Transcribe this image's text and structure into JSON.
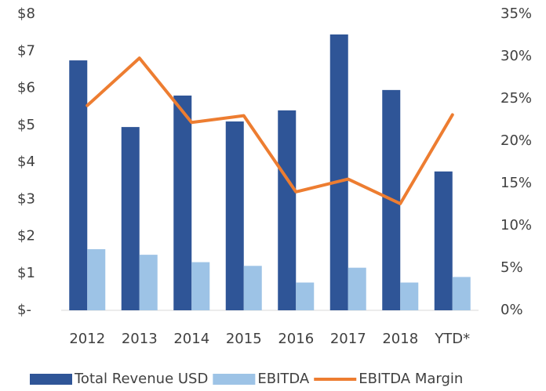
{
  "chart_data": {
    "type": "bar_line",
    "categories": [
      "2012",
      "2013",
      "2014",
      "2015",
      "2016",
      "2017",
      "2018",
      "YTD*"
    ],
    "series": [
      {
        "name": "Total Revenue USD",
        "type": "bar",
        "color": "#2f5597",
        "values": [
          6.75,
          4.95,
          5.8,
          5.1,
          5.4,
          7.45,
          5.95,
          3.75
        ]
      },
      {
        "name": "EBITDA",
        "type": "bar",
        "color": "#9dc3e6",
        "values": [
          1.65,
          1.5,
          1.3,
          1.2,
          0.75,
          1.15,
          0.75,
          0.9
        ]
      },
      {
        "name": "EBITDA Margin",
        "type": "line",
        "axis": "y2",
        "color": "#ed7d31",
        "values": [
          24.2,
          29.8,
          22.2,
          23.0,
          14.0,
          15.5,
          12.6,
          23.1
        ]
      }
    ],
    "ylim": [
      0,
      8
    ],
    "yticks": [
      {
        "value": 0,
        "label": "$-"
      },
      {
        "value": 1,
        "label": "$1"
      },
      {
        "value": 2,
        "label": "$2"
      },
      {
        "value": 3,
        "label": "$3"
      },
      {
        "value": 4,
        "label": "$4"
      },
      {
        "value": 5,
        "label": "$5"
      },
      {
        "value": 6,
        "label": "$6"
      },
      {
        "value": 7,
        "label": "$7"
      },
      {
        "value": 8,
        "label": "$8"
      }
    ],
    "y2lim": [
      0,
      35
    ],
    "y2ticks": [
      {
        "value": 0,
        "label": "0%"
      },
      {
        "value": 5,
        "label": "5%"
      },
      {
        "value": 10,
        "label": "10%"
      },
      {
        "value": 15,
        "label": "15%"
      },
      {
        "value": 20,
        "label": "20%"
      },
      {
        "value": 25,
        "label": "25%"
      },
      {
        "value": 30,
        "label": "30%"
      },
      {
        "value": 35,
        "label": "35%"
      }
    ],
    "grid": false,
    "legend": "bottom"
  }
}
